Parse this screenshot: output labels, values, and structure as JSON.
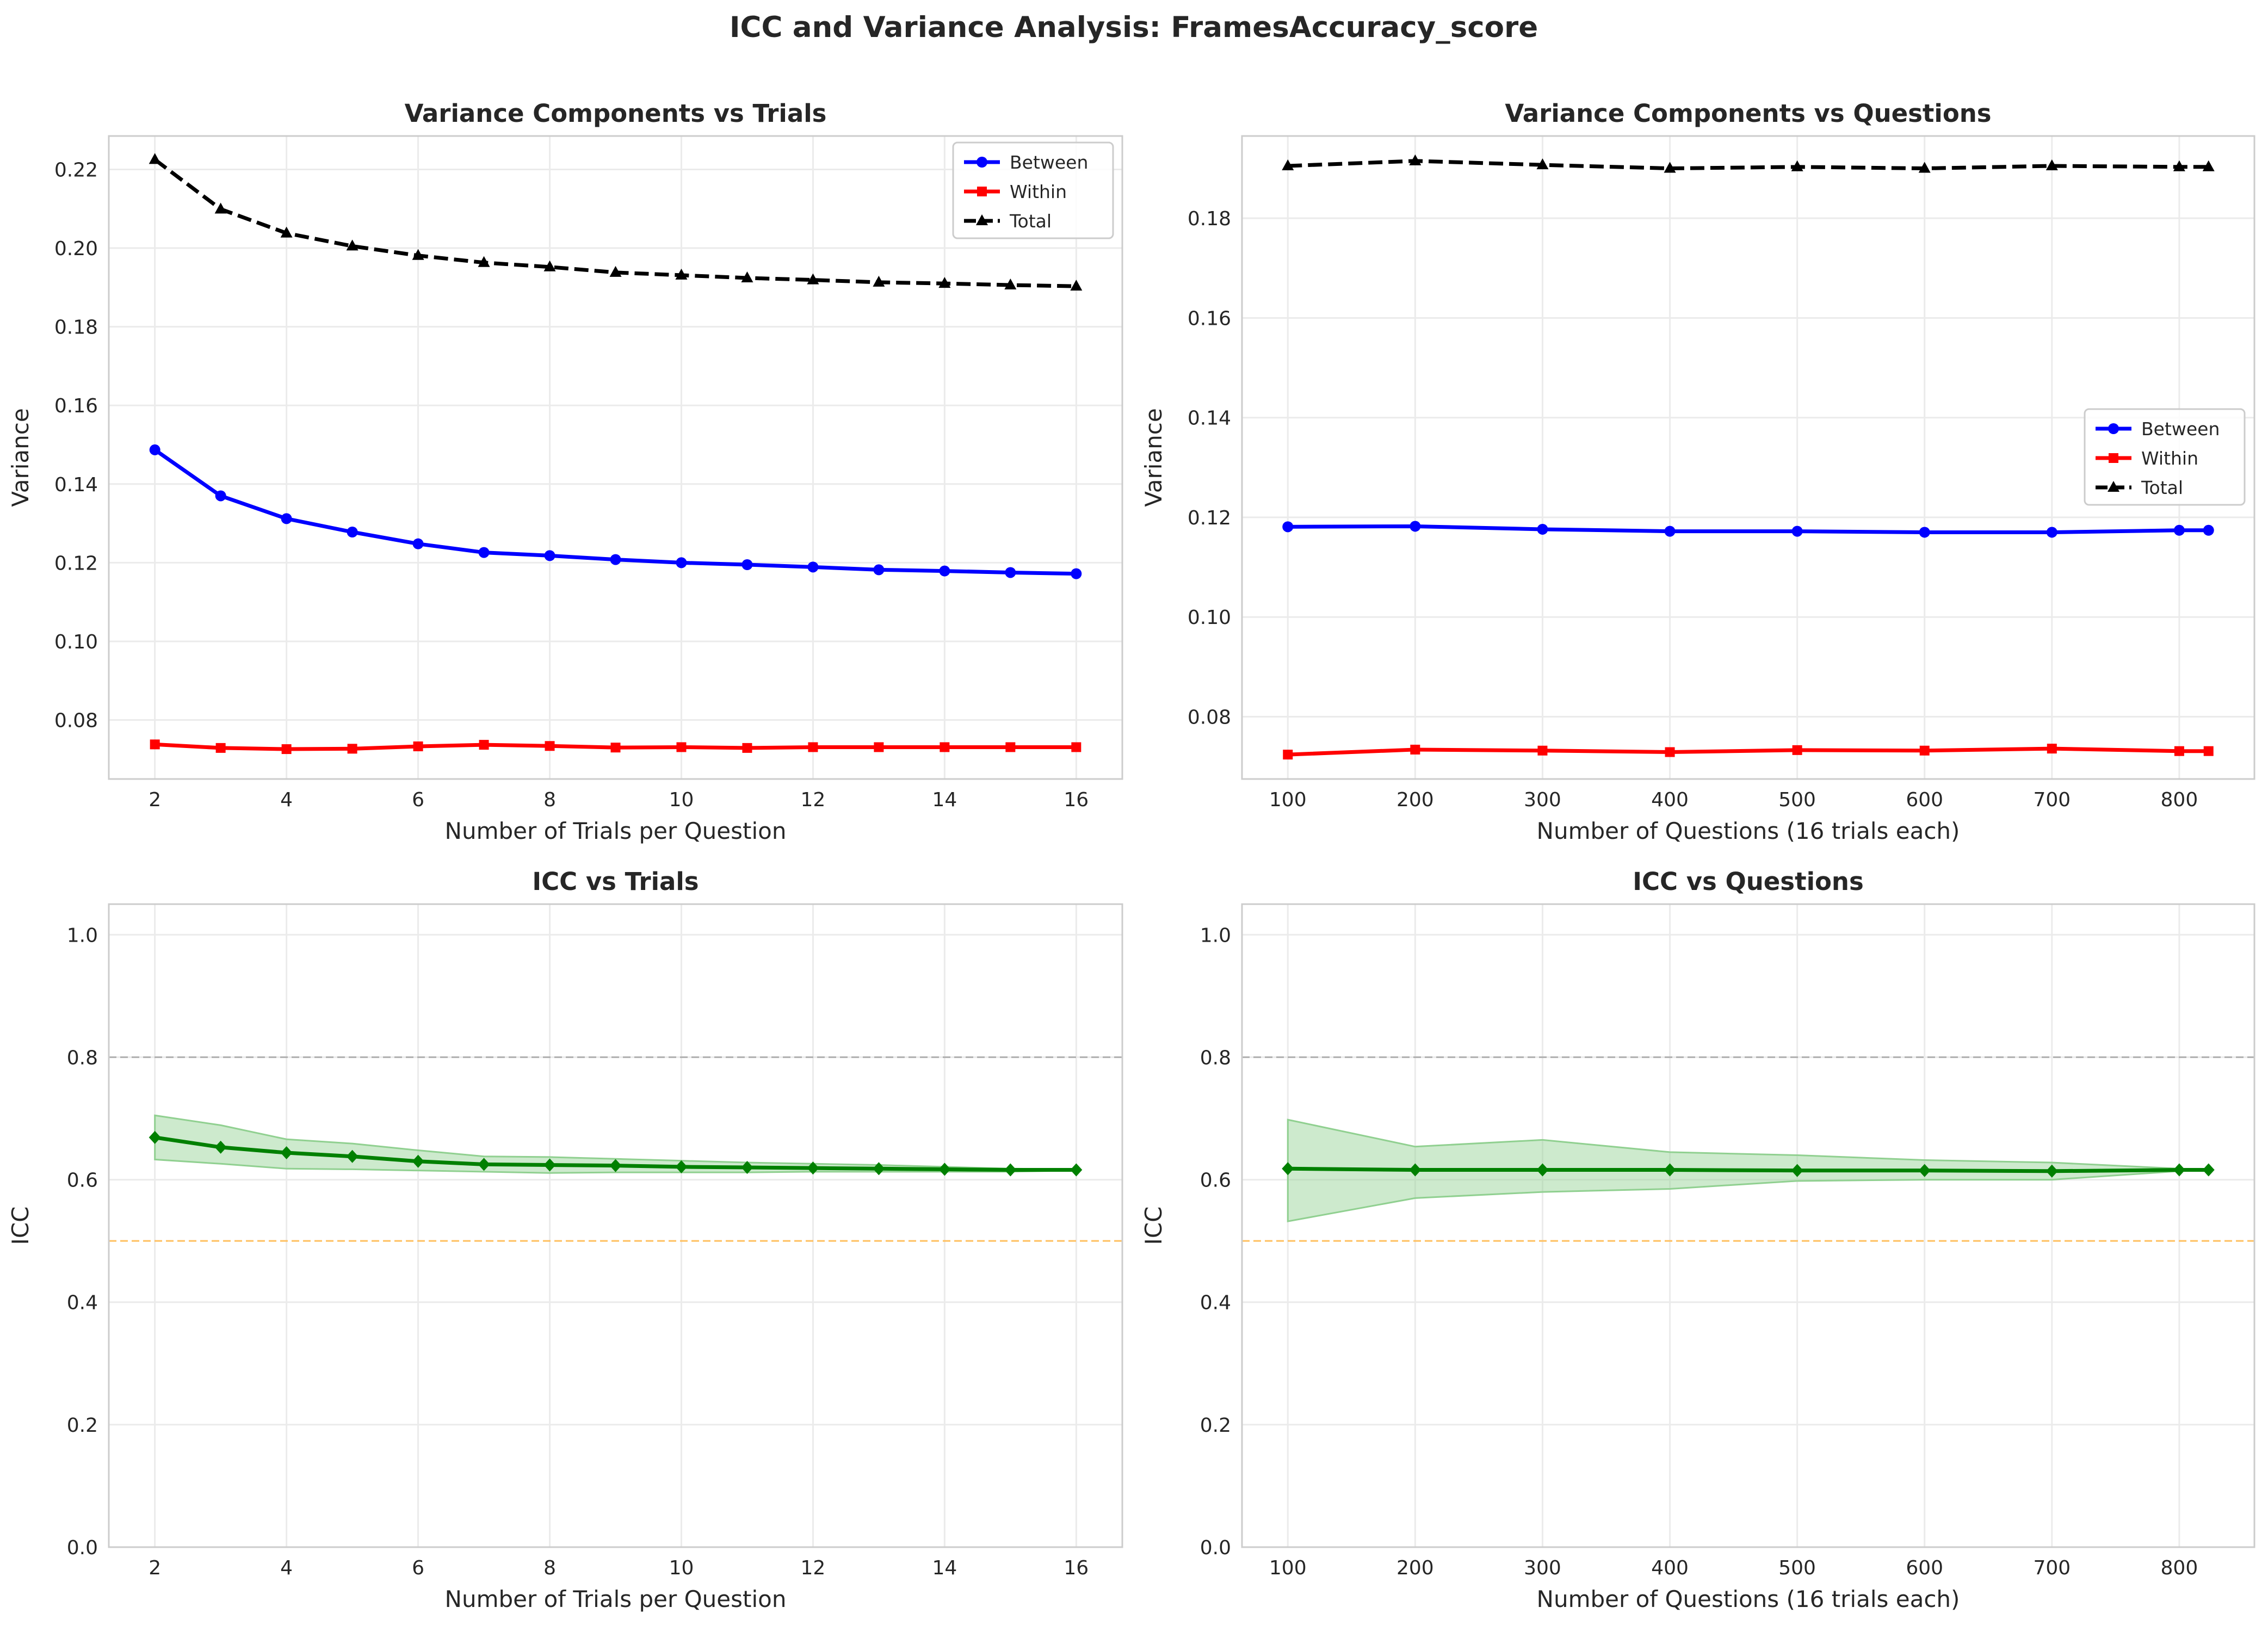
{
  "figure": {
    "title": "ICC and Variance Analysis: FramesAccuracy_score"
  },
  "colors": {
    "between": "#0000ff",
    "within": "#ff0000",
    "total": "#000000",
    "icc": "#008000",
    "icc_band": "#90d090",
    "ref_high": "#b0b0b0",
    "ref_low": "#ffc060"
  },
  "chart_data": [
    {
      "type": "line",
      "title": "Variance Components vs Trials",
      "xlabel": "Number of Trials per Question",
      "ylabel": "Variance",
      "x": [
        2,
        3,
        4,
        5,
        6,
        7,
        8,
        9,
        10,
        11,
        12,
        13,
        14,
        15,
        16
      ],
      "xlim": [
        1.3,
        16.7
      ],
      "ylim": [
        0.065,
        0.2285
      ],
      "xticks": [
        2,
        4,
        6,
        8,
        10,
        12,
        14,
        16
      ],
      "yticks": [
        0.08,
        0.1,
        0.12,
        0.14,
        0.16,
        0.18,
        0.2,
        0.22
      ],
      "series": [
        {
          "name": "Between",
          "marker": "circle",
          "style": "solid",
          "values": [
            0.1487,
            0.137,
            0.1312,
            0.1278,
            0.1248,
            0.1226,
            0.1218,
            0.1208,
            0.12,
            0.1195,
            0.1189,
            0.1182,
            0.1179,
            0.1175,
            0.1172
          ]
        },
        {
          "name": "Within",
          "marker": "square",
          "style": "solid",
          "values": [
            0.0738,
            0.0729,
            0.0726,
            0.0727,
            0.0733,
            0.0737,
            0.0734,
            0.073,
            0.0731,
            0.0729,
            0.0731,
            0.0731,
            0.0731,
            0.0731,
            0.0731
          ]
        },
        {
          "name": "Total",
          "marker": "triangle",
          "style": "dashed",
          "values": [
            0.2225,
            0.2099,
            0.2038,
            0.2005,
            0.1981,
            0.1963,
            0.1952,
            0.1938,
            0.1931,
            0.1924,
            0.1919,
            0.1913,
            0.191,
            0.1906,
            0.1903
          ]
        }
      ],
      "legend": "top-right",
      "grid": true
    },
    {
      "type": "line",
      "title": "Variance Components vs Questions",
      "xlabel": "Number of Questions (16 trials each)",
      "ylabel": "Variance",
      "x": [
        100,
        200,
        300,
        400,
        500,
        600,
        700,
        800,
        823
      ],
      "xlim": [
        64,
        859
      ],
      "ylim": [
        0.0675,
        0.1965
      ],
      "xticks": [
        100,
        200,
        300,
        400,
        500,
        600,
        700,
        800
      ],
      "yticks": [
        0.08,
        0.1,
        0.12,
        0.14,
        0.16,
        0.18
      ],
      "series": [
        {
          "name": "Between",
          "marker": "circle",
          "style": "solid",
          "values": [
            0.1181,
            0.1182,
            0.1176,
            0.1172,
            0.1172,
            0.117,
            0.117,
            0.1174,
            0.1174
          ]
        },
        {
          "name": "Within",
          "marker": "square",
          "style": "solid",
          "values": [
            0.0724,
            0.0734,
            0.0732,
            0.0729,
            0.0733,
            0.0732,
            0.0736,
            0.0731,
            0.0731
          ]
        },
        {
          "name": "Total",
          "marker": "triangle",
          "style": "dashed",
          "values": [
            0.1905,
            0.1915,
            0.1907,
            0.19,
            0.1903,
            0.19,
            0.1905,
            0.1903,
            0.1903
          ]
        }
      ],
      "legend": "center-right",
      "grid": true
    },
    {
      "type": "line",
      "title": "ICC vs Trials",
      "xlabel": "Number of Trials per Question",
      "ylabel": "ICC",
      "x": [
        2,
        3,
        4,
        5,
        6,
        7,
        8,
        9,
        10,
        11,
        12,
        13,
        14,
        15,
        16
      ],
      "xlim": [
        1.3,
        16.7
      ],
      "ylim": [
        0,
        1.05
      ],
      "xticks": [
        2,
        4,
        6,
        8,
        10,
        12,
        14,
        16
      ],
      "yticks": [
        0.0,
        0.2,
        0.4,
        0.6,
        0.8,
        1.0
      ],
      "series": [
        {
          "name": "ICC",
          "marker": "diamond",
          "style": "solid",
          "values": [
            0.669,
            0.653,
            0.644,
            0.638,
            0.63,
            0.625,
            0.624,
            0.623,
            0.621,
            0.62,
            0.619,
            0.618,
            0.617,
            0.616,
            0.616
          ]
        }
      ],
      "band": {
        "lower": [
          0.633,
          0.626,
          0.618,
          0.617,
          0.615,
          0.613,
          0.611,
          0.612,
          0.612,
          0.612,
          0.613,
          0.613,
          0.613,
          0.613,
          0.615
        ],
        "upper": [
          0.705,
          0.689,
          0.666,
          0.659,
          0.648,
          0.638,
          0.637,
          0.634,
          0.631,
          0.628,
          0.626,
          0.624,
          0.621,
          0.618,
          0.617
        ]
      },
      "reference_lines": [
        0.8,
        0.5
      ],
      "grid": true
    },
    {
      "type": "line",
      "title": "ICC vs Questions",
      "xlabel": "Number of Questions (16 trials each)",
      "ylabel": "ICC",
      "x": [
        100,
        200,
        300,
        400,
        500,
        600,
        700,
        800,
        823
      ],
      "xlim": [
        64,
        859
      ],
      "ylim": [
        0,
        1.05
      ],
      "xticks": [
        100,
        200,
        300,
        400,
        500,
        600,
        700,
        800
      ],
      "yticks": [
        0.0,
        0.2,
        0.4,
        0.6,
        0.8,
        1.0
      ],
      "series": [
        {
          "name": "ICC",
          "marker": "diamond",
          "style": "solid",
          "values": [
            0.618,
            0.616,
            0.616,
            0.616,
            0.615,
            0.615,
            0.614,
            0.616,
            0.616
          ]
        }
      ],
      "band": {
        "lower": [
          0.532,
          0.57,
          0.58,
          0.585,
          0.598,
          0.6,
          0.6,
          0.614,
          0.616
        ],
        "upper": [
          0.698,
          0.654,
          0.665,
          0.645,
          0.64,
          0.632,
          0.628,
          0.618,
          0.616
        ]
      },
      "reference_lines": [
        0.8,
        0.5
      ],
      "grid": true
    }
  ]
}
